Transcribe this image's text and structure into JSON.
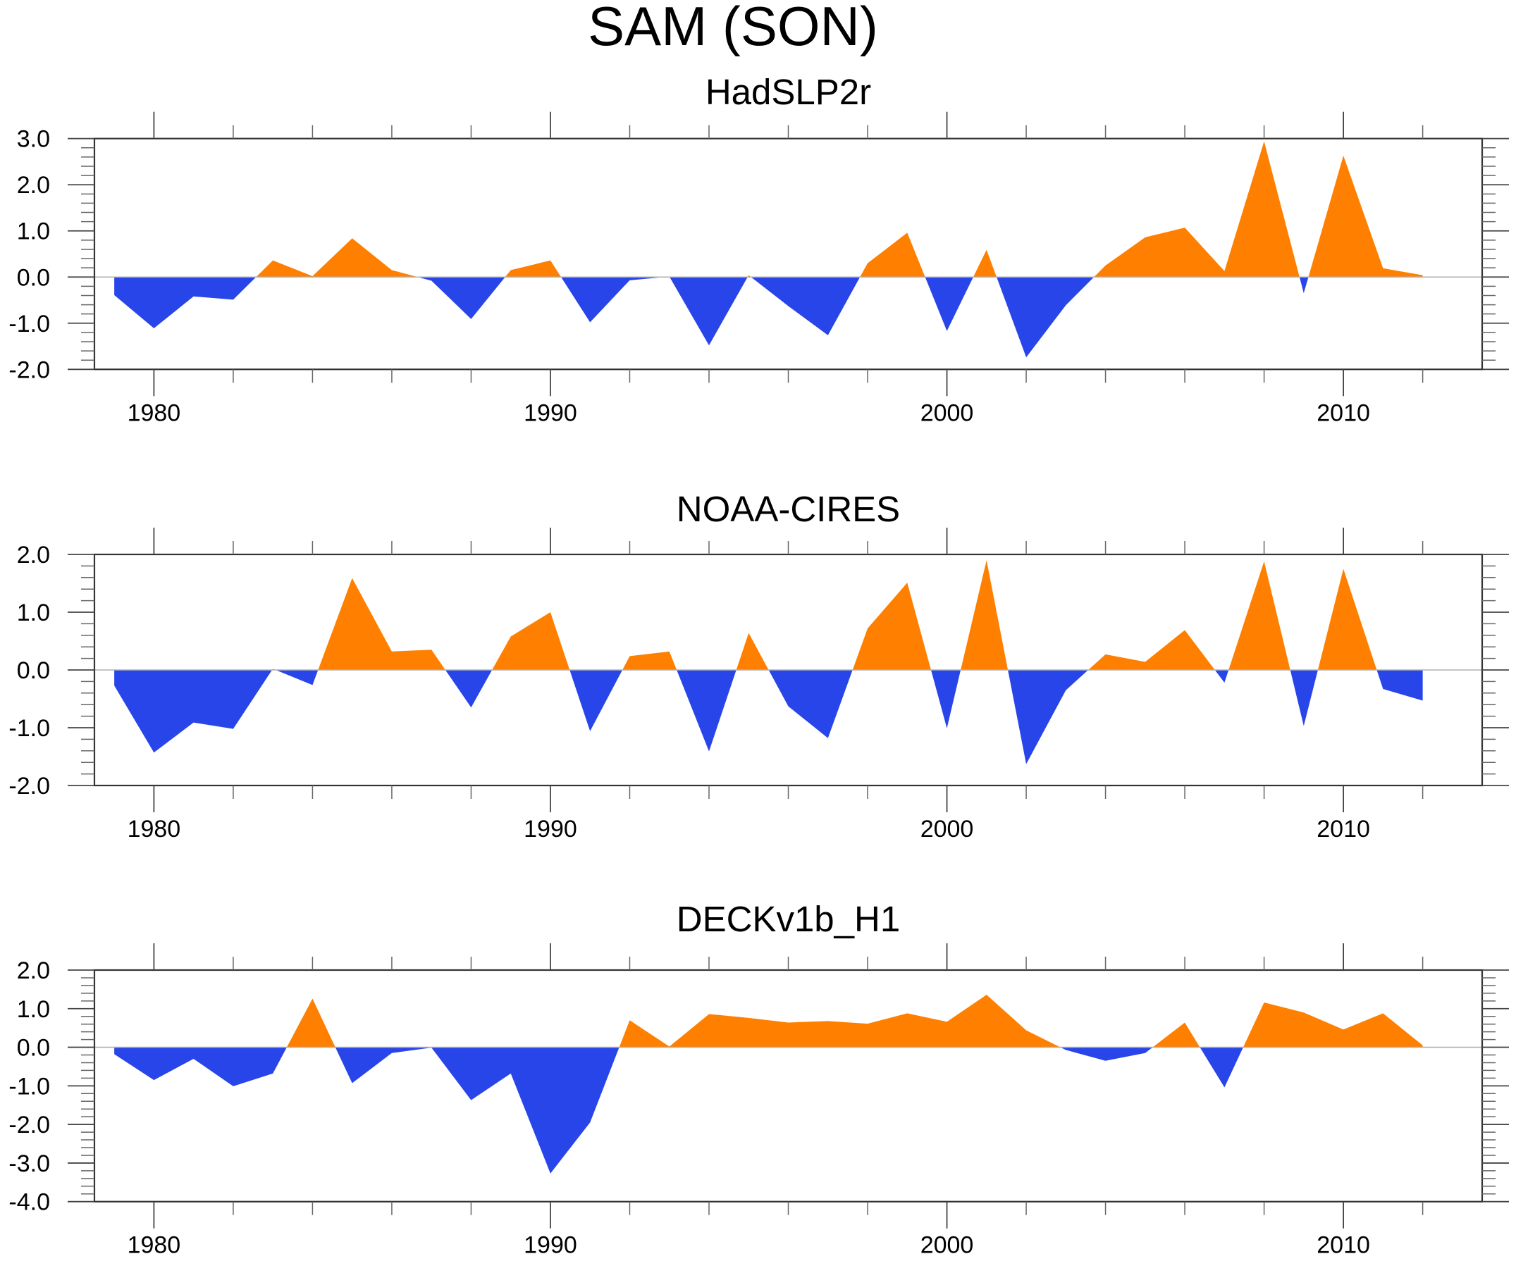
{
  "chart_data": {
    "type": "area",
    "title": "SAM (SON)",
    "colors": {
      "positive": "#ff8000",
      "negative": "#2845ea",
      "zero_line": "#b0b0b0",
      "frame": "#333333"
    },
    "x": [
      1979,
      1980,
      1981,
      1982,
      1983,
      1984,
      1985,
      1986,
      1987,
      1988,
      1989,
      1990,
      1991,
      1992,
      1993,
      1994,
      1995,
      1996,
      1997,
      1998,
      1999,
      2000,
      2001,
      2002,
      2003,
      2004,
      2005,
      2006,
      2007,
      2008,
      2009,
      2010,
      2011,
      2012
    ],
    "xlim": [
      1978.5,
      2013.5
    ],
    "x_major_ticks": [
      1980,
      1990,
      2000,
      2010
    ],
    "x_tick_labels": [
      "1980",
      "1990",
      "2000",
      "2010"
    ],
    "x_minor_step": 2,
    "y_minor_step": 0.2,
    "grid": false,
    "legend": "none",
    "panels": [
      {
        "title": "HadSLP2r",
        "ylim": [
          -2.0,
          3.0
        ],
        "y_ticks": [
          3.0,
          2.0,
          1.0,
          0.0,
          -1.0,
          -2.0
        ],
        "y_tick_labels": [
          "3.0",
          "2.0",
          "1.0",
          "0.0",
          "-1.0",
          "-2.0"
        ],
        "values": [
          -0.39,
          -1.11,
          -0.42,
          -0.49,
          0.36,
          0.02,
          0.84,
          0.15,
          -0.08,
          -0.91,
          0.15,
          0.36,
          -0.98,
          -0.07,
          0.01,
          -1.48,
          0.04,
          -0.63,
          -1.26,
          0.3,
          0.96,
          -1.17,
          0.59,
          -1.74,
          -0.61,
          0.25,
          0.86,
          1.07,
          0.13,
          2.94,
          -0.35,
          2.63,
          0.19,
          0.04
        ]
      },
      {
        "title": "NOAA-CIRES",
        "ylim": [
          -2.0,
          2.0
        ],
        "y_ticks": [
          2.0,
          1.0,
          0.0,
          -1.0,
          -2.0
        ],
        "y_tick_labels": [
          "2.0",
          "1.0",
          "0.0",
          "-1.0",
          "-2.0"
        ],
        "values": [
          -0.27,
          -1.43,
          -0.91,
          -1.02,
          0.02,
          -0.26,
          1.59,
          0.32,
          0.35,
          -0.65,
          0.58,
          1.0,
          -1.06,
          0.24,
          0.32,
          -1.41,
          0.64,
          -0.63,
          -1.18,
          0.72,
          1.51,
          -1.01,
          1.9,
          -1.63,
          -0.35,
          0.27,
          0.14,
          0.69,
          -0.22,
          1.88,
          -0.97,
          1.75,
          -0.33,
          -0.53
        ]
      },
      {
        "title": "DECKv1b_H1",
        "ylim": [
          -4.0,
          2.0
        ],
        "y_ticks": [
          2.0,
          1.0,
          0.0,
          -1.0,
          -2.0,
          -3.0,
          -4.0
        ],
        "y_tick_labels": [
          "2.0",
          "1.0",
          "0.0",
          "-1.0",
          "-2.0",
          "-3.0",
          "-4.0"
        ],
        "values": [
          -0.18,
          -0.85,
          -0.3,
          -1.01,
          -0.68,
          1.26,
          -0.93,
          -0.15,
          -0.01,
          -1.37,
          -0.68,
          -3.27,
          -1.95,
          0.7,
          0.02,
          0.86,
          0.76,
          0.64,
          0.68,
          0.61,
          0.88,
          0.66,
          1.36,
          0.44,
          -0.07,
          -0.35,
          -0.15,
          0.64,
          -1.04,
          1.16,
          0.9,
          0.46,
          0.88,
          0.05
        ]
      }
    ]
  }
}
